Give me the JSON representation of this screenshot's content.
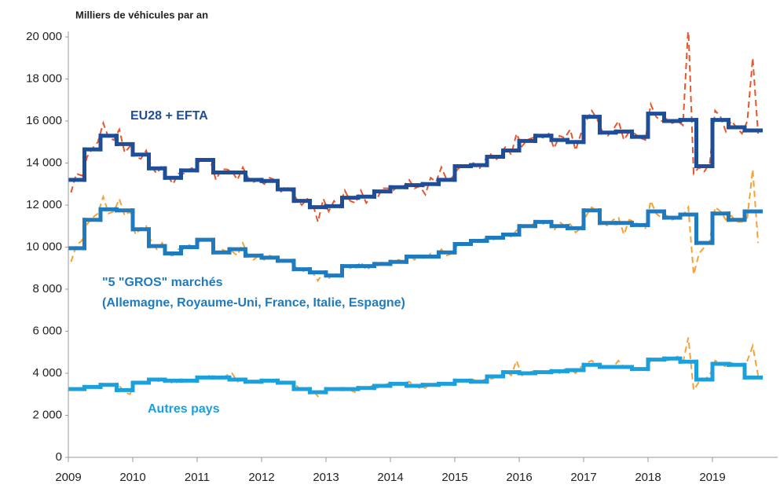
{
  "chart_data": {
    "type": "line",
    "title": "Milliers de véhicules par an",
    "xlim": [
      2009,
      2020
    ],
    "xticks": [
      2009,
      2010,
      2011,
      2012,
      2013,
      2014,
      2015,
      2016,
      2017,
      2018,
      2019
    ],
    "ylim": [
      0,
      20000
    ],
    "yticks": [
      0,
      {
        "value": 2000,
        "label": "2 000"
      },
      {
        "value": 4000,
        "label": "4 000"
      },
      {
        "value": 6000,
        "label": "6 000"
      },
      {
        "value": 8000,
        "label": "8 000"
      },
      {
        "value": 10000,
        "label": "10 000"
      },
      {
        "value": 12000,
        "label": "12 000"
      },
      {
        "value": 14000,
        "label": "14 000"
      },
      {
        "value": 16000,
        "label": "16 000"
      },
      {
        "value": 18000,
        "label": "18 000"
      },
      {
        "value": 20000,
        "label": "20 000"
      }
    ],
    "x_quarters": [
      "2009-Q1",
      "2009-Q2",
      "2009-Q3",
      "2009-Q4",
      "2010-Q1",
      "2010-Q2",
      "2010-Q3",
      "2010-Q4",
      "2011-Q1",
      "2011-Q2",
      "2011-Q3",
      "2011-Q4",
      "2012-Q1",
      "2012-Q2",
      "2012-Q3",
      "2012-Q4",
      "2013-Q1",
      "2013-Q2",
      "2013-Q3",
      "2013-Q4",
      "2014-Q1",
      "2014-Q2",
      "2014-Q3",
      "2014-Q4",
      "2015-Q1",
      "2015-Q2",
      "2015-Q3",
      "2015-Q4",
      "2016-Q1",
      "2016-Q2",
      "2016-Q3",
      "2016-Q4",
      "2017-Q1",
      "2017-Q2",
      "2017-Q3",
      "2017-Q4",
      "2018-Q1",
      "2018-Q2",
      "2018-Q3",
      "2018-Q4",
      "2019-Q1",
      "2019-Q2",
      "2019-Q3"
    ],
    "x_months": [
      "2009-01",
      "2009-02",
      "2009-03",
      "2009-04",
      "2009-05",
      "2009-06",
      "2009-07",
      "2009-08",
      "2009-09",
      "2009-10",
      "2009-11",
      "2009-12",
      "2010-01",
      "2010-02",
      "2010-03",
      "2010-04",
      "2010-05",
      "2010-06",
      "2010-07",
      "2010-08",
      "2010-09",
      "2010-10",
      "2010-11",
      "2010-12",
      "2011-01",
      "2011-02",
      "2011-03",
      "2011-04",
      "2011-05",
      "2011-06",
      "2011-07",
      "2011-08",
      "2011-09",
      "2011-10",
      "2011-11",
      "2011-12",
      "2012-01",
      "2012-02",
      "2012-03",
      "2012-04",
      "2012-05",
      "2012-06",
      "2012-07",
      "2012-08",
      "2012-09",
      "2012-10",
      "2012-11",
      "2012-12",
      "2013-01",
      "2013-02",
      "2013-03",
      "2013-04",
      "2013-05",
      "2013-06",
      "2013-07",
      "2013-08",
      "2013-09",
      "2013-10",
      "2013-11",
      "2013-12",
      "2014-01",
      "2014-02",
      "2014-03",
      "2014-04",
      "2014-05",
      "2014-06",
      "2014-07",
      "2014-08",
      "2014-09",
      "2014-10",
      "2014-11",
      "2014-12",
      "2015-01",
      "2015-02",
      "2015-03",
      "2015-04",
      "2015-05",
      "2015-06",
      "2015-07",
      "2015-08",
      "2015-09",
      "2015-10",
      "2015-11",
      "2015-12",
      "2016-01",
      "2016-02",
      "2016-03",
      "2016-04",
      "2016-05",
      "2016-06",
      "2016-07",
      "2016-08",
      "2016-09",
      "2016-10",
      "2016-11",
      "2016-12",
      "2017-01",
      "2017-02",
      "2017-03",
      "2017-04",
      "2017-05",
      "2017-06",
      "2017-07",
      "2017-08",
      "2017-09",
      "2017-10",
      "2017-11",
      "2017-12",
      "2018-01",
      "2018-02",
      "2018-03",
      "2018-04",
      "2018-05",
      "2018-06",
      "2018-07",
      "2018-08",
      "2018-09",
      "2018-10",
      "2018-11",
      "2018-12",
      "2019-01",
      "2019-02",
      "2019-03",
      "2019-04",
      "2019-05",
      "2019-06",
      "2019-07",
      "2019-08",
      "2019-09"
    ],
    "series": [
      {
        "name": "EU28 + EFTA",
        "color": "#1f4e99",
        "style": "step",
        "values": [
          13200,
          14650,
          15300,
          14900,
          14400,
          13750,
          13300,
          13650,
          14150,
          13550,
          13550,
          13200,
          13150,
          12750,
          12200,
          11900,
          11950,
          12350,
          12400,
          12650,
          12850,
          12950,
          13000,
          13200,
          13850,
          13900,
          14300,
          14600,
          15050,
          15300,
          15100,
          15000,
          16200,
          15450,
          15500,
          15250,
          16350,
          16000,
          16050,
          13850,
          16050,
          15700,
          15550
        ]
      },
      {
        "color": "#e8552a",
        "style": "dashed",
        "values": [
          12600,
          13500,
          13400,
          14300,
          14700,
          15000,
          15900,
          15200,
          15100,
          15600,
          14500,
          14800,
          14300,
          14200,
          14600,
          13800,
          13500,
          13900,
          13400,
          13000,
          13500,
          13500,
          13700,
          13800,
          14100,
          14200,
          14100,
          13200,
          13700,
          13700,
          13600,
          13200,
          13800,
          13300,
          13100,
          13200,
          13000,
          13300,
          13200,
          12600,
          12900,
          12700,
          12300,
          12000,
          12300,
          12100,
          11200,
          12300,
          11700,
          12200,
          11900,
          12700,
          12200,
          12100,
          12700,
          12100,
          12400,
          12300,
          12800,
          12800,
          12700,
          12900,
          12900,
          13200,
          12800,
          12900,
          12500,
          13300,
          13100,
          13800,
          13200,
          13300,
          13700,
          13900,
          13900,
          14000,
          13700,
          14100,
          14500,
          14100,
          14400,
          14800,
          14400,
          15400,
          14800,
          15100,
          15200,
          15300,
          15200,
          15400,
          14700,
          15300,
          15200,
          15600,
          14600,
          15400,
          16000,
          16500,
          16100,
          15500,
          15300,
          15600,
          16000,
          15100,
          15500,
          15400,
          15200,
          15100,
          16800,
          16200,
          16000,
          16100,
          15900,
          16000,
          15800,
          20500,
          13500,
          13800,
          13600,
          14000,
          16500,
          16200,
          15500,
          16000,
          15700,
          15400,
          16000,
          19000,
          15400
        ]
      },
      {
        "name": "\"5 \"GROS\" marchés",
        "name2": "(Allemagne, Royaume-Uni, France, Italie, Espagne)",
        "color": "#1e7bbf",
        "style": "step",
        "values": [
          9950,
          11300,
          11800,
          11750,
          10850,
          10050,
          9700,
          10000,
          10350,
          9750,
          9900,
          9600,
          9500,
          9350,
          8950,
          8800,
          8650,
          9100,
          9100,
          9200,
          9300,
          9550,
          9550,
          9750,
          10150,
          10300,
          10450,
          10600,
          11000,
          11200,
          11000,
          10900,
          11750,
          11150,
          11150,
          11050,
          11700,
          11400,
          11550,
          10200,
          11600,
          11300,
          11700
        ]
      },
      {
        "color": "#f5a133",
        "style": "dashed",
        "values": [
          9300,
          10100,
          10300,
          11100,
          11400,
          11600,
          12400,
          11600,
          11700,
          12300,
          11500,
          11700,
          10600,
          10900,
          11000,
          10200,
          9900,
          10200,
          9600,
          9600,
          9900,
          9900,
          10100,
          10000,
          10300,
          10400,
          10400,
          9700,
          9900,
          9800,
          9800,
          9600,
          10200,
          9600,
          9400,
          9600,
          9400,
          9600,
          9500,
          9300,
          9400,
          9300,
          9000,
          8800,
          9000,
          8800,
          8400,
          8800,
          8500,
          8800,
          8600,
          9200,
          9000,
          9000,
          9300,
          8900,
          9100,
          9100,
          9300,
          9200,
          9200,
          9400,
          9300,
          9600,
          9400,
          9600,
          9400,
          9700,
          9500,
          9900,
          9600,
          9700,
          10100,
          10200,
          10200,
          10300,
          10200,
          10400,
          10500,
          10300,
          10500,
          10600,
          10500,
          10800,
          10900,
          11000,
          11100,
          11200,
          11100,
          11300,
          10800,
          11200,
          11000,
          11100,
          10700,
          10900,
          11500,
          11900,
          11700,
          11200,
          11000,
          11300,
          11400,
          10600,
          11300,
          11200,
          11000,
          10900,
          12200,
          11600,
          11400,
          11500,
          11300,
          11400,
          11500,
          11900,
          8700,
          9700,
          10000,
          10300,
          11900,
          11700,
          11300,
          11500,
          11200,
          11200,
          11400,
          13700,
          10200
        ]
      },
      {
        "name": "Autres pays",
        "color": "#1aa0dc",
        "style": "step",
        "values": [
          3250,
          3350,
          3450,
          3200,
          3550,
          3700,
          3650,
          3650,
          3800,
          3800,
          3700,
          3600,
          3650,
          3550,
          3250,
          3100,
          3250,
          3250,
          3300,
          3400,
          3500,
          3400,
          3450,
          3500,
          3650,
          3600,
          3850,
          4050,
          4000,
          4050,
          4100,
          4150,
          4400,
          4300,
          4300,
          4200,
          4650,
          4700,
          4550,
          3700,
          4450,
          4400,
          3800
        ]
      },
      {
        "color": "#f5a133",
        "style": "dashed",
        "values": [
          3200,
          3300,
          3300,
          3300,
          3400,
          3400,
          3500,
          3400,
          3500,
          3400,
          3100,
          3000,
          3600,
          3500,
          3600,
          3700,
          3600,
          3700,
          3700,
          3500,
          3600,
          3700,
          3600,
          3600,
          3800,
          3800,
          3900,
          3800,
          3700,
          3900,
          4000,
          3600,
          3700,
          3600,
          3600,
          3600,
          3600,
          3700,
          3700,
          3600,
          3500,
          3500,
          3400,
          3200,
          3200,
          3200,
          2900,
          3100,
          3200,
          3300,
          3200,
          3300,
          3200,
          3100,
          3300,
          3200,
          3400,
          3300,
          3400,
          3500,
          3500,
          3500,
          3500,
          3600,
          3400,
          3300,
          3300,
          3500,
          3500,
          3500,
          3500,
          3500,
          3600,
          3600,
          3700,
          3700,
          3500,
          3700,
          3700,
          3800,
          3900,
          4100,
          3900,
          4600,
          3900,
          4000,
          4100,
          4000,
          4100,
          4100,
          4200,
          4000,
          4200,
          4200,
          4000,
          4300,
          4500,
          4600,
          4400,
          4300,
          4300,
          4300,
          4600,
          4300,
          4300,
          4200,
          4200,
          4200,
          4600,
          4700,
          4600,
          4600,
          4700,
          4800,
          4500,
          5700,
          3200,
          3600,
          3700,
          3900,
          4600,
          4500,
          4300,
          4500,
          4400,
          4400,
          4600,
          5300,
          3900
        ]
      }
    ]
  }
}
